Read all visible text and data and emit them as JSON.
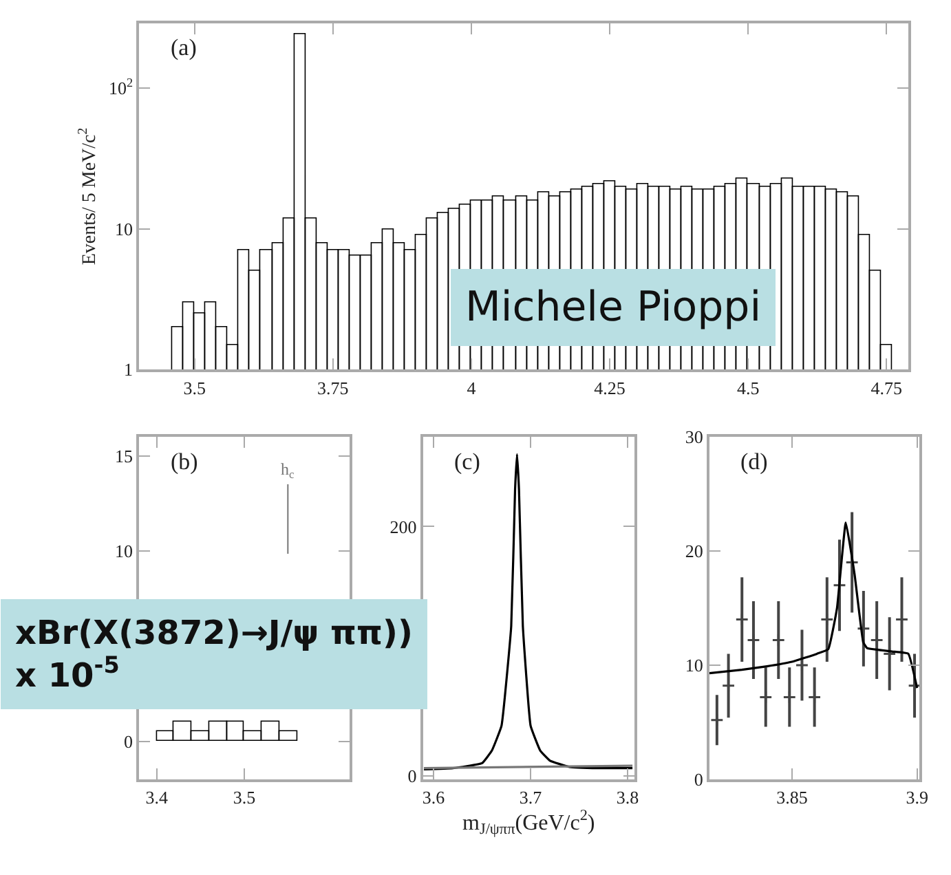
{
  "chart_data": [
    {
      "type": "histogram",
      "title": "(a)",
      "ylabel": "Events/ 5 MeV/c$^{2}$",
      "log": "y",
      "color": "#000000",
      "bins": [
        3.46,
        3.48,
        3.5,
        3.52,
        3.54,
        3.56,
        3.58,
        3.6,
        3.62,
        3.64,
        3.66,
        3.68,
        3.7,
        3.72,
        3.74,
        3.76,
        3.78,
        3.8,
        3.82,
        3.84,
        3.86,
        3.88,
        3.9,
        3.92,
        3.94,
        3.96,
        3.98,
        4.0,
        4.02,
        4.04,
        4.06,
        4.08,
        4.1,
        4.12,
        4.14,
        4.16,
        4.18,
        4.2,
        4.22,
        4.24,
        4.26,
        4.28,
        4.3,
        4.32,
        4.34,
        4.36,
        4.38,
        4.4,
        4.42,
        4.44,
        4.46,
        4.48,
        4.5,
        4.52,
        4.54,
        4.56,
        4.58,
        4.6,
        4.62,
        4.64,
        4.66,
        4.68,
        4.7,
        4.72,
        4.74,
        4.76
      ],
      "values": [
        2,
        3,
        2.5,
        3,
        2,
        1.5,
        7,
        5,
        7,
        8,
        12,
        240,
        12,
        8,
        7,
        7,
        6.5,
        6.5,
        8,
        10,
        8,
        7,
        9,
        12,
        13,
        14,
        15,
        16,
        16,
        17,
        16,
        17,
        16,
        18,
        17,
        18,
        19,
        20,
        21,
        22,
        20,
        19,
        21,
        20,
        20,
        19,
        20,
        19,
        19,
        20,
        21,
        23,
        21,
        20,
        21,
        23,
        20,
        20,
        20,
        19,
        18,
        17,
        9,
        5,
        1.5
      ],
      "xlim": [
        3.4,
        4.79
      ],
      "xticks": [
        3.5,
        3.75,
        4,
        4.25,
        4.5,
        4.75
      ],
      "ylim": [
        1,
        290
      ],
      "yticks": [
        1,
        10,
        {
          "value": 100,
          "label": "10$^{2}$"
        }
      ],
      "annotations": [
        "Michele Pioppi"
      ]
    },
    {
      "type": "histogram",
      "title": "(b)",
      "color": "#000000",
      "bins": [
        3.4,
        3.42,
        3.44,
        3.46,
        3.48,
        3.5,
        3.52,
        3.54,
        3.56
      ],
      "values": [
        0.5,
        1,
        0.5,
        1,
        1,
        0.5,
        1,
        0.5
      ],
      "xlim": [
        3.38,
        3.62
      ],
      "xticks": [
        3.4,
        3.5
      ],
      "ylim": [
        -2,
        16
      ],
      "yticks": [
        0,
        10,
        15
      ],
      "annotations": [
        "h$_{c}$",
        "xBr(X(3872)→J/ψ ππ))\nx 10$^{-5}$"
      ]
    },
    {
      "type": "line",
      "title": "(c)",
      "xlabel": "m$_{J/ψππ}$(GeV/c$^{2}$)",
      "series": [
        {
          "color": "#000000",
          "x": [
            3.59,
            3.62,
            3.65,
            3.66,
            3.67,
            3.68,
            3.684,
            3.686,
            3.688,
            3.692,
            3.7,
            3.71,
            3.72,
            3.74,
            3.77,
            3.805
          ],
          "values": [
            5,
            6,
            10,
            20,
            40,
            120,
            230,
            258,
            230,
            120,
            40,
            20,
            12,
            7,
            6,
            6
          ]
        },
        {
          "color": "#777777",
          "x": [
            3.59,
            3.805
          ],
          "values": [
            6,
            8
          ]
        }
      ],
      "xlim": [
        3.589,
        3.807
      ],
      "xticks": [
        3.6,
        3.7,
        3.8
      ],
      "ylim": [
        -3,
        272
      ],
      "yticks": [
        0,
        200
      ]
    },
    {
      "type": "scatter",
      "title": "(d)",
      "series": [
        {
          "type": "scatter",
          "color": "#444444",
          "marker": "cross",
          "x": [
            3.82,
            3.8246,
            3.83,
            3.8346,
            3.8395,
            3.8446,
            3.849,
            3.854,
            3.859,
            3.864,
            3.869,
            3.874,
            3.8786,
            3.8839,
            3.889,
            3.8939,
            3.899
          ],
          "values": [
            5.2,
            8.2,
            14,
            12.2,
            7.2,
            12.2,
            7.2,
            10,
            7.2,
            14,
            17,
            19,
            13.2,
            12.2,
            11,
            14,
            8.2
          ],
          "errors": [
            2.2,
            2.8,
            3.7,
            3.4,
            2.6,
            3.4,
            2.6,
            3.1,
            2.6,
            3.7,
            4,
            4.4,
            3.3,
            3.4,
            3.2,
            3.7,
            2.8
          ]
        },
        {
          "type": "line",
          "color": "#000000",
          "x": [
            3.817,
            3.83,
            3.84,
            3.85,
            3.86,
            3.8645,
            3.868,
            3.8715,
            3.875,
            3.8785,
            3.88,
            3.89,
            3.8965,
            3.9
          ],
          "values": [
            9.3,
            9.6,
            9.9,
            10.3,
            11,
            11.4,
            15,
            22.5,
            18,
            12,
            11.5,
            11.2,
            11,
            8
          ]
        }
      ],
      "xlim": [
        3.817,
        3.901
      ],
      "xticks": [
        3.85,
        3.9
      ],
      "ylim": [
        0,
        30
      ],
      "yticks": [
        0,
        10,
        20,
        30
      ]
    }
  ]
}
